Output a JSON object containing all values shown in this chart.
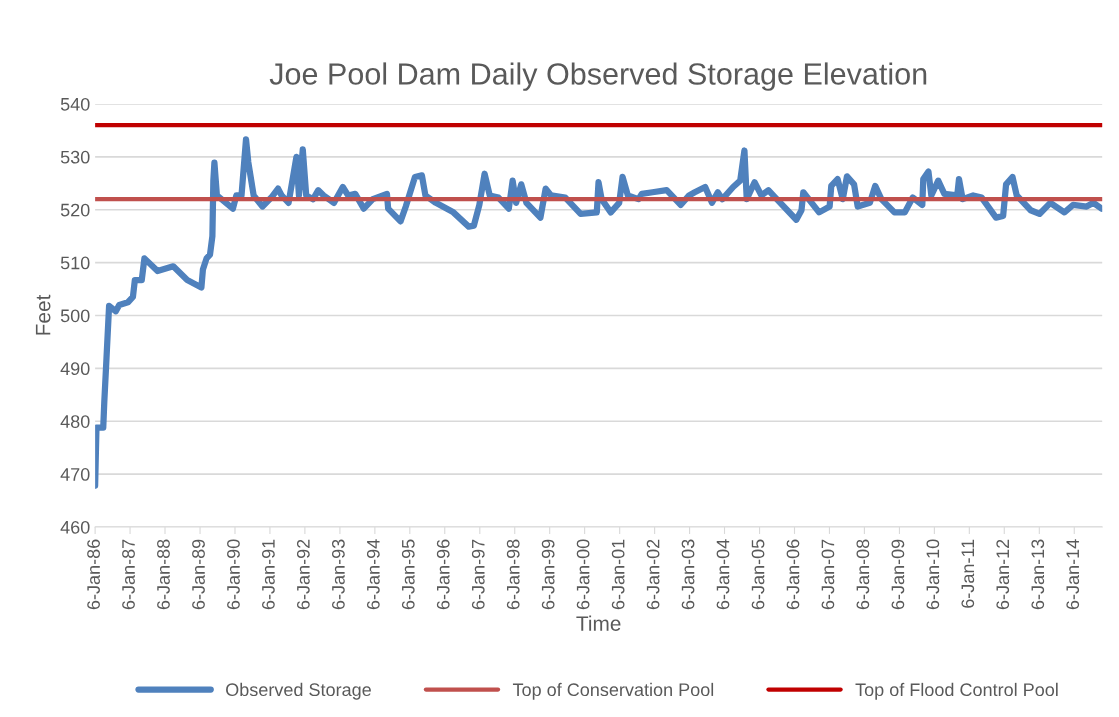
{
  "chart_data": {
    "type": "line",
    "title": "Joe Pool Dam Daily Observed Storage Elevation",
    "xlabel": "Time",
    "ylabel": "Feet",
    "x": [
      "1986-01-06",
      "1986-01-20",
      "1986-04-01",
      "1986-04-12",
      "1986-05-05",
      "1986-06-01",
      "1986-08-10",
      "1986-09-15",
      "1986-12-15",
      "1987-02-05",
      "1987-02-25",
      "1987-05-08",
      "1987-06-05",
      "1987-10-20",
      "1988-04-01",
      "1988-08-25",
      "1989-01-20",
      "1989-02-05",
      "1989-03-15",
      "1989-04-20",
      "1989-05-15",
      "1989-05-25",
      "1989-06-05",
      "1989-07-01",
      "1989-12-15",
      "1990-01-20",
      "1990-03-15",
      "1990-05-01",
      "1990-05-25",
      "1990-07-20",
      "1990-10-20",
      "1991-01-20",
      "1991-04-01",
      "1991-05-08",
      "1991-07-20",
      "1991-10-10",
      "1991-11-05",
      "1991-12-15",
      "1992-01-20",
      "1992-04-01",
      "1992-05-25",
      "1992-07-20",
      "1992-11-05",
      "1993-02-05",
      "1993-04-01",
      "1993-06-15",
      "1993-09-12",
      "1993-12-15",
      "1994-05-12",
      "1994-05-25",
      "1994-10-01",
      "1994-11-25",
      "1995-03-01",
      "1995-05-12",
      "1995-06-18",
      "1995-10-05",
      "1996-04-05",
      "1996-09-12",
      "1996-11-05",
      "1997-01-01",
      "1997-02-25",
      "1997-04-20",
      "1997-07-20",
      "1997-11-05",
      "1997-12-15",
      "1998-01-20",
      "1998-03-15",
      "1998-05-08",
      "1998-10-01",
      "1998-11-25",
      "1999-01-20",
      "1999-06-18",
      "1999-11-25",
      "2000-05-12",
      "2000-05-30",
      "2000-07-01",
      "2000-10-05",
      "2001-01-01",
      "2001-02-05",
      "2001-04-01",
      "2001-07-22",
      "2001-08-25",
      "2001-12-15",
      "2002-05-12",
      "2002-10-05",
      "2003-01-01",
      "2003-03-01",
      "2003-06-18",
      "2003-08-28",
      "2003-10-28",
      "2003-12-15",
      "2004-04-05",
      "2004-06-18",
      "2004-08-01",
      "2004-08-25",
      "2004-11-15",
      "2005-01-25",
      "2005-04-08",
      "2005-06-20",
      "2006-01-25",
      "2006-03-20",
      "2006-04-08",
      "2006-09-20",
      "2007-01-08",
      "2007-01-25",
      "2007-04-01",
      "2007-05-25",
      "2007-07-08",
      "2007-09-20",
      "2007-10-28",
      "2008-03-03",
      "2008-04-28",
      "2008-07-01",
      "2008-11-15",
      "2009-03-03",
      "2009-05-25",
      "2009-09-02",
      "2009-09-12",
      "2009-11-05",
      "2009-12-05",
      "2010-02-15",
      "2010-04-20",
      "2010-09-02",
      "2010-09-20",
      "2010-10-28",
      "2011-02-15",
      "2011-05-15",
      "2011-10-12",
      "2011-12-25",
      "2012-01-25",
      "2012-04-01",
      "2012-05-15",
      "2012-10-08",
      "2013-01-08",
      "2013-05-01",
      "2013-09-25",
      "2013-12-25",
      "2014-05-15",
      "2014-07-25",
      "2014-10-20"
    ],
    "series": [
      {
        "name": "Observed Storage",
        "color": "#4f81bd",
        "values": [
          467.8,
          478.8,
          478.8,
          483.7,
          492,
          501.8,
          500.8,
          502,
          502.5,
          503.5,
          506.7,
          506.7,
          510.8,
          508.4,
          509.3,
          506.7,
          505.3,
          508.7,
          510.8,
          511.5,
          515,
          525.5,
          528.9,
          522.7,
          520.2,
          522.7,
          522.7,
          533.3,
          529,
          522.7,
          520.6,
          522.3,
          524,
          522.7,
          521.3,
          530,
          522.7,
          531.4,
          522.7,
          522,
          523.7,
          522.7,
          521.3,
          524.3,
          522.7,
          523,
          520.2,
          522,
          523,
          520.2,
          517.8,
          520.6,
          526.2,
          526.5,
          522.7,
          521.3,
          519.5,
          516.8,
          517,
          520.9,
          526.8,
          522.7,
          522.3,
          520.2,
          525.5,
          521.3,
          524.8,
          521.3,
          518.5,
          524,
          522.7,
          522.3,
          519.2,
          519.5,
          525.2,
          522,
          519.5,
          521.3,
          526.2,
          522.7,
          522,
          523,
          523.3,
          523.7,
          520.9,
          522.7,
          523.3,
          524.3,
          521.3,
          523.3,
          522,
          524.3,
          525.5,
          531.2,
          522,
          525.2,
          522.7,
          523.7,
          522.3,
          518.1,
          519.9,
          523.3,
          519.5,
          520.6,
          524.5,
          525.8,
          522,
          526.3,
          524.8,
          520.6,
          521.3,
          524.5,
          522,
          519.5,
          519.5,
          522.3,
          520.9,
          525.8,
          527.2,
          522.7,
          525.5,
          523,
          522.7,
          525.8,
          522,
          522.7,
          522.3,
          518.5,
          518.8,
          524.8,
          526.2,
          522.7,
          519.9,
          519.2,
          521.3,
          519.5,
          520.9,
          520.6,
          521.3,
          520.2
        ]
      }
    ],
    "ref_lines": [
      {
        "axis": "y",
        "value": 522,
        "label": "Top of Conservation Pool",
        "color": "#c0504d"
      },
      {
        "axis": "y",
        "value": 536,
        "label": "Top of Flood Control Pool",
        "color": "#c00000"
      }
    ],
    "xlim": [
      "1986-01-06",
      "2014-10-25"
    ],
    "xticks": [
      {
        "value": "1986-01-06",
        "label": "6-Jan-86"
      },
      {
        "value": "1987-01-06",
        "label": "6-Jan-87"
      },
      {
        "value": "1988-01-06",
        "label": "6-Jan-88"
      },
      {
        "value": "1989-01-06",
        "label": "6-Jan-89"
      },
      {
        "value": "1990-01-06",
        "label": "6-Jan-90"
      },
      {
        "value": "1991-01-06",
        "label": "6-Jan-91"
      },
      {
        "value": "1992-01-06",
        "label": "6-Jan-92"
      },
      {
        "value": "1993-01-06",
        "label": "6-Jan-93"
      },
      {
        "value": "1994-01-06",
        "label": "6-Jan-94"
      },
      {
        "value": "1995-01-06",
        "label": "6-Jan-95"
      },
      {
        "value": "1996-01-06",
        "label": "6-Jan-96"
      },
      {
        "value": "1997-01-06",
        "label": "6-Jan-97"
      },
      {
        "value": "1998-01-06",
        "label": "6-Jan-98"
      },
      {
        "value": "1999-01-06",
        "label": "6-Jan-99"
      },
      {
        "value": "2000-01-06",
        "label": "6-Jan-00"
      },
      {
        "value": "2001-01-06",
        "label": "6-Jan-01"
      },
      {
        "value": "2002-01-06",
        "label": "6-Jan-02"
      },
      {
        "value": "2003-01-06",
        "label": "6-Jan-03"
      },
      {
        "value": "2004-01-06",
        "label": "6-Jan-04"
      },
      {
        "value": "2005-01-06",
        "label": "6-Jan-05"
      },
      {
        "value": "2006-01-06",
        "label": "6-Jan-06"
      },
      {
        "value": "2007-01-06",
        "label": "6-Jan-07"
      },
      {
        "value": "2008-01-06",
        "label": "6-Jan-08"
      },
      {
        "value": "2009-01-06",
        "label": "6-Jan-09"
      },
      {
        "value": "2010-01-06",
        "label": "6-Jan-10"
      },
      {
        "value": "2011-01-06",
        "label": "6-Jan-11"
      },
      {
        "value": "2012-01-06",
        "label": "6-Jan-12"
      },
      {
        "value": "2013-01-06",
        "label": "6-Jan-13"
      },
      {
        "value": "2014-01-06",
        "label": "6-Jan-14"
      }
    ],
    "ylim": [
      460,
      540
    ],
    "yticks": [
      460,
      470,
      480,
      490,
      500,
      510,
      520,
      530,
      540
    ],
    "grid": "y",
    "legend": "bottom",
    "marker": "none",
    "line_style": "solid"
  }
}
